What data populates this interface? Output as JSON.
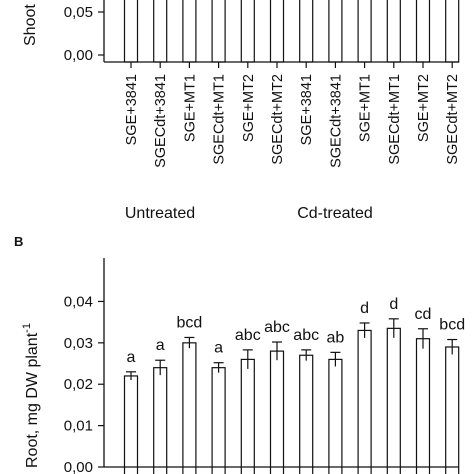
{
  "chart_data": [
    {
      "type": "bar",
      "panel": "",
      "ylabel": "Shoot",
      "yticks": [
        "0,05",
        "0,00"
      ],
      "ylim": [
        0,
        0.06
      ],
      "categories": [
        "SGE+3841",
        "SGECdt+3841",
        "SGE+MT1",
        "SGECdt+MT1",
        "SGE+MT2",
        "SGECdt+MT2",
        "SGE+3841",
        "SGECdt+3841",
        "SGE+MT1",
        "SGECdt+MT1",
        "SGE+MT2",
        "SGECdt+MT2"
      ],
      "groups": [
        {
          "label": "Untreated",
          "count": 6
        },
        {
          "label": "Cd-treated",
          "count": 6
        }
      ]
    },
    {
      "type": "bar",
      "panel": "B",
      "ylabel": "Root, mg DW plant",
      "ylabel_sup": "-1",
      "yticks": [
        "0,04",
        "0,03",
        "0,02",
        "0,01",
        "0,00"
      ],
      "ytick_values": [
        0.04,
        0.03,
        0.02,
        0.01,
        0.0
      ],
      "ylim": [
        0,
        0.0505
      ],
      "grid": false,
      "values": [
        0.022,
        0.024,
        0.03,
        0.024,
        0.026,
        0.028,
        0.027,
        0.026,
        0.033,
        0.0335,
        0.031,
        0.029
      ],
      "errors": [
        0.001,
        0.0018,
        0.0013,
        0.0012,
        0.0023,
        0.0022,
        0.0013,
        0.0017,
        0.0018,
        0.0023,
        0.0024,
        0.0018
      ],
      "letters": [
        "a",
        "a",
        "bcd",
        "a",
        "abc",
        "abc",
        "abc",
        "ab",
        "d",
        "d",
        "cd",
        "bcd"
      ]
    }
  ],
  "colors": {
    "bar_fill": "#ffffff",
    "stroke": "#111111"
  }
}
